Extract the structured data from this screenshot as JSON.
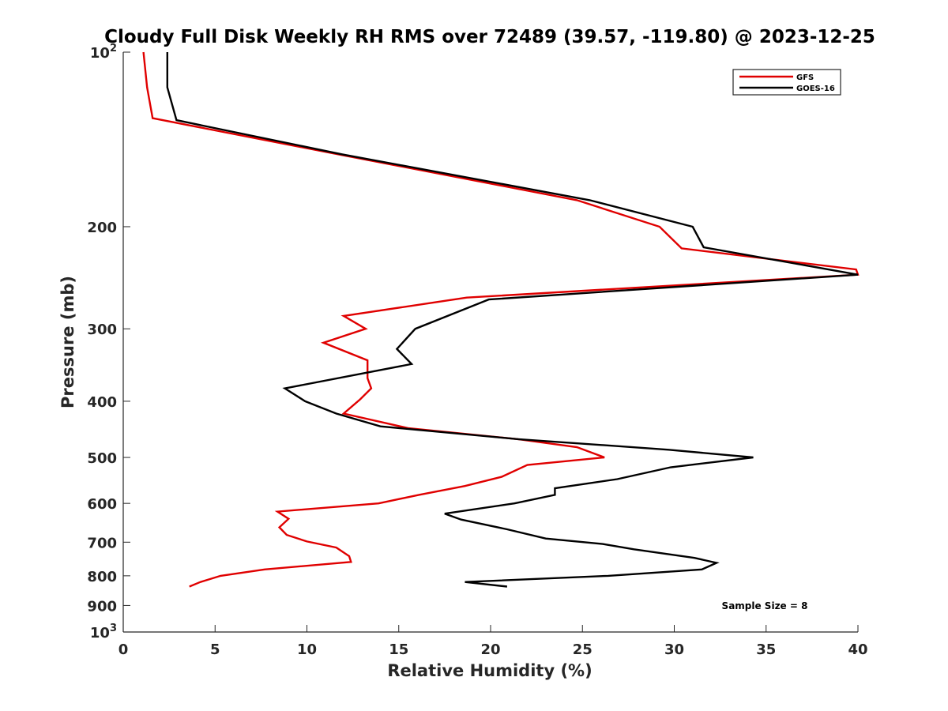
{
  "chart_data": {
    "type": "line",
    "title": "Cloudy Full Disk Weekly RH RMS over 72489 (39.57, -119.80) @ 2023-12-25",
    "xlabel": "Relative Humidity (%)",
    "ylabel": "Pressure (mb)",
    "xlim": [
      0,
      40
    ],
    "ylim": [
      100,
      1000
    ],
    "y_scale": "log",
    "y_reversed": true,
    "grid": false,
    "legend_position": "top-right",
    "annotation": "Sample Size = 8",
    "x_ticks": [
      "0",
      "5",
      "10",
      "15",
      "20",
      "25",
      "30",
      "35",
      "40"
    ],
    "y_ticks": [
      {
        "value": 100,
        "base": "10",
        "exp": "2"
      },
      {
        "value": 200,
        "label": "200"
      },
      {
        "value": 300,
        "label": "300"
      },
      {
        "value": 400,
        "label": "400"
      },
      {
        "value": 500,
        "label": "500"
      },
      {
        "value": 600,
        "label": "600"
      },
      {
        "value": 700,
        "label": "700"
      },
      {
        "value": 800,
        "label": "800"
      },
      {
        "value": 900,
        "label": "900"
      },
      {
        "value": 1000,
        "base": "10",
        "exp": "3"
      }
    ],
    "series": [
      {
        "name": "GFS",
        "color": "#e00000",
        "points": [
          [
            1.1,
            100
          ],
          [
            1.3,
            115
          ],
          [
            1.6,
            130
          ],
          [
            11.7,
            150
          ],
          [
            24.7,
            180
          ],
          [
            29.2,
            200
          ],
          [
            30.4,
            218
          ],
          [
            39.9,
            237
          ],
          [
            40.0,
            242
          ],
          [
            18.7,
            265
          ],
          [
            12.0,
            285
          ],
          [
            13.2,
            300
          ],
          [
            10.9,
            317
          ],
          [
            13.3,
            340
          ],
          [
            13.3,
            365
          ],
          [
            13.5,
            380
          ],
          [
            12.9,
            397
          ],
          [
            12.0,
            420
          ],
          [
            15.5,
            445
          ],
          [
            21.5,
            465
          ],
          [
            24.7,
            480
          ],
          [
            26.2,
            500
          ],
          [
            22.0,
            515
          ],
          [
            20.6,
            540
          ],
          [
            18.6,
            560
          ],
          [
            16.1,
            580
          ],
          [
            13.9,
            600
          ],
          [
            8.4,
            620
          ],
          [
            9.0,
            638
          ],
          [
            8.5,
            660
          ],
          [
            8.9,
            680
          ],
          [
            10.0,
            698
          ],
          [
            11.6,
            715
          ],
          [
            12.3,
            740
          ],
          [
            12.4,
            757
          ],
          [
            7.7,
            780
          ],
          [
            5.3,
            800
          ],
          [
            4.2,
            820
          ],
          [
            3.6,
            835
          ]
        ]
      },
      {
        "name": "GOES-16",
        "color": "#000000",
        "points": [
          [
            2.4,
            100
          ],
          [
            2.4,
            115
          ],
          [
            2.9,
            131
          ],
          [
            11.9,
            150
          ],
          [
            25.4,
            180
          ],
          [
            31.0,
            200
          ],
          [
            31.6,
            217
          ],
          [
            40.0,
            242
          ],
          [
            19.9,
            267
          ],
          [
            15.9,
            300
          ],
          [
            14.9,
            325
          ],
          [
            15.7,
            345
          ],
          [
            8.8,
            380
          ],
          [
            9.9,
            400
          ],
          [
            11.6,
            420
          ],
          [
            14.0,
            442
          ],
          [
            21.5,
            465
          ],
          [
            29.7,
            485
          ],
          [
            34.3,
            500
          ],
          [
            29.8,
            520
          ],
          [
            26.9,
            545
          ],
          [
            23.5,
            565
          ],
          [
            23.5,
            580
          ],
          [
            21.3,
            600
          ],
          [
            17.5,
            625
          ],
          [
            18.4,
            640
          ],
          [
            20.9,
            665
          ],
          [
            23.0,
            690
          ],
          [
            26.1,
            705
          ],
          [
            27.8,
            720
          ],
          [
            31.1,
            745
          ],
          [
            32.3,
            760
          ],
          [
            31.5,
            780
          ],
          [
            26.4,
            800
          ],
          [
            18.6,
            820
          ],
          [
            20.9,
            835
          ]
        ]
      }
    ]
  }
}
